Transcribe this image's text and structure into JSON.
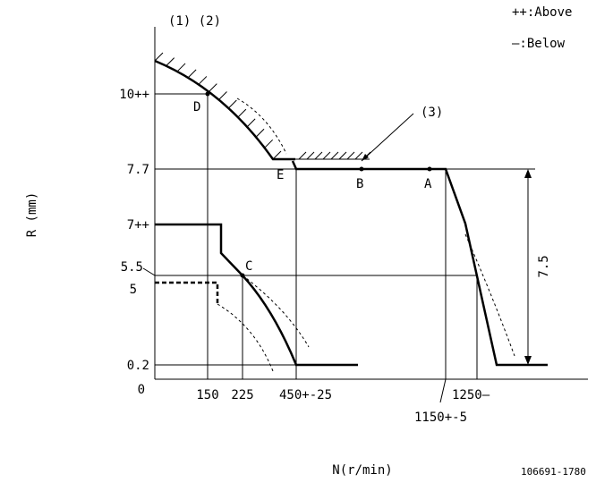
{
  "header": {
    "top_label": "(1) (2)",
    "legend_above": "++:Above",
    "legend_below": "—:Below"
  },
  "axes": {
    "y_title": "R (mm)",
    "x_title": "N(r/min)",
    "y_labels": [
      "10++",
      "7.7",
      "7++",
      "5.5",
      "5",
      "0.2",
      "0"
    ],
    "x_labels": [
      "150",
      "225",
      "450+-25",
      "1150+-5",
      "1250—"
    ]
  },
  "points": [
    "D",
    "E",
    "B",
    "A",
    "C"
  ],
  "annotations": {
    "note3": "(3)",
    "dimension": "7.5",
    "drawing_no": "106691-1780"
  }
}
